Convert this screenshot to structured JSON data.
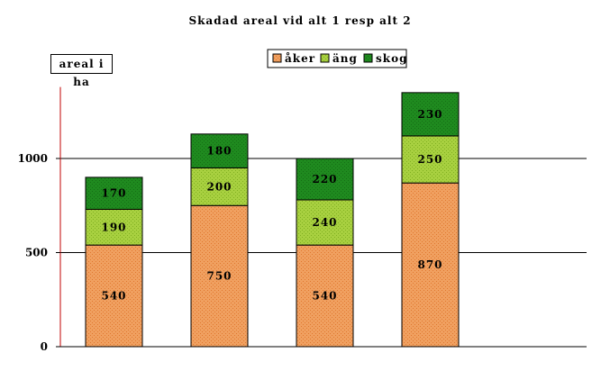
{
  "chart_data": {
    "type": "bar",
    "stacked": true,
    "title": "Skadad areal vid alt 1 resp alt 2",
    "ylabel": "areal i ha",
    "xlabel": "",
    "ylim": [
      0,
      1380
    ],
    "yticks": [
      0,
      500,
      1000
    ],
    "gridlines": [
      500,
      1000
    ],
    "legend_position": "top-right",
    "categories": [
      "",
      "",
      "",
      ""
    ],
    "series": [
      {
        "name": "åker",
        "values": [
          540,
          750,
          540,
          870
        ],
        "color": "#F4A460"
      },
      {
        "name": "äng",
        "values": [
          190,
          200,
          240,
          250
        ],
        "color": "#9ACD32"
      },
      {
        "name": "skog",
        "values": [
          170,
          180,
          220,
          230
        ],
        "color": "#1E8B1E"
      }
    ]
  }
}
